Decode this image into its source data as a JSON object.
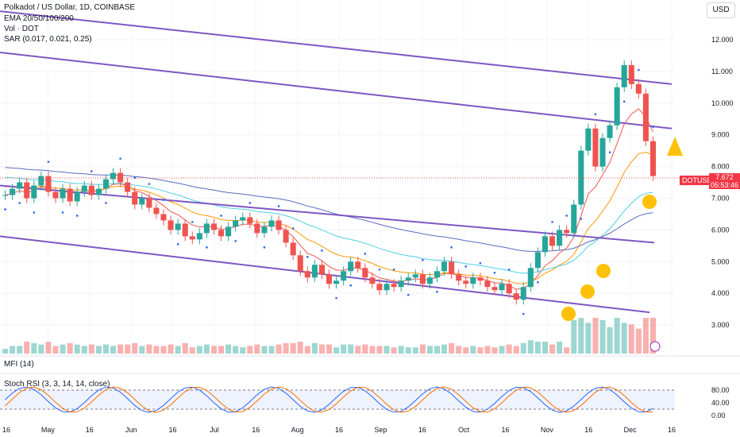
{
  "header": {
    "title": "Polkadot / US Dollar, 1D, COINBASE",
    "ema": "EMA 20/50/100/200",
    "vol": "Vol · DOT",
    "sar": "SAR (0.017, 0.021, 0.25)"
  },
  "currency": "USD",
  "last_price": {
    "symbol": "DOTUSD",
    "value": "7.672",
    "countdown": "05:53:46"
  },
  "mfi_label": "MFI (14)",
  "stoch_label": "Stoch RSI (3, 3, 14, 14, close)",
  "colors": {
    "up": "#26a69a",
    "down": "#ef5350",
    "channel": "#7e57c2",
    "ema20": "#ef5350",
    "ema50": "#ff9800",
    "ema100": "#4dd0e1",
    "ema200": "#5c6bc0",
    "sar": "#2962ff",
    "stoch_k": "#2962ff",
    "stoch_d": "#ff6d00"
  },
  "chart_data": {
    "type": "candlestick",
    "y_ticks": [
      "12.000",
      "11.000",
      "10.000",
      "9.000",
      "8.000",
      "7.000",
      "6.000",
      "5.000",
      "4.000",
      "3.000"
    ],
    "ylim": [
      2.1,
      12.9
    ],
    "x_ticks": [
      "16",
      "May",
      "16",
      "Jun",
      "16",
      "Jul",
      "16",
      "Aug",
      "16",
      "Sep",
      "16",
      "Oct",
      "16",
      "Nov",
      "16",
      "Dec",
      "16"
    ],
    "stoch_ticks": [
      "80.00",
      "40.00",
      "0.00"
    ],
    "close_path": [
      [
        7.1,
        7.3,
        7.5,
        7.0,
        7.4,
        7.7,
        7.2,
        7.0,
        7.3,
        6.9,
        7.2,
        7.4,
        7.1,
        7.3,
        7.6,
        7.8,
        7.5,
        7.2,
        6.8,
        7.0,
        6.7,
        6.5,
        6.3,
        6.0,
        6.2,
        5.8,
        5.7,
        5.9,
        6.2,
        6.0,
        5.8,
        6.1,
        6.3,
        6.4,
        6.2,
        5.9,
        6.1,
        6.3,
        6.0,
        5.6,
        5.2,
        4.7,
        4.5,
        4.9,
        4.6,
        4.3,
        4.4,
        4.7,
        5.0,
        4.8,
        4.5,
        4.3,
        4.1,
        4.3,
        4.2,
        4.4,
        4.5,
        4.6,
        4.3,
        4.5,
        4.7,
        5.0,
        4.6,
        4.4,
        4.3,
        4.5,
        4.4,
        4.2,
        4.1,
        4.3,
        4.0,
        3.8,
        4.2,
        4.8,
        5.3,
        5.8,
        5.5,
        6.0,
        5.9,
        6.8,
        8.5,
        9.2,
        8.0,
        8.9,
        9.3,
        10.5,
        11.2,
        10.6,
        10.3,
        8.8,
        7.7
      ]
    ],
    "channels": [
      {
        "from": [
          0,
          12.9
        ],
        "to": [
          846,
          10.6
        ]
      },
      {
        "from": [
          0,
          11.6
        ],
        "to": [
          846,
          9.2
        ]
      },
      {
        "from": [
          0,
          7.4
        ],
        "to": [
          824,
          5.6
        ]
      },
      {
        "from": [
          0,
          5.8
        ],
        "to": [
          818,
          3.4
        ]
      }
    ]
  }
}
